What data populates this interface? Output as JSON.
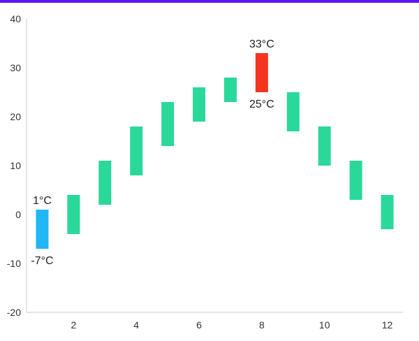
{
  "colors": {
    "top_bar": "#5b17f0",
    "default_bar": "#2ad89a",
    "min_bar": "#1fb8f5",
    "max_bar": "#f5341f"
  },
  "chart_data": {
    "type": "bar",
    "subtype": "range",
    "title": "",
    "xlabel": "",
    "ylabel": "",
    "x": [
      1,
      2,
      3,
      4,
      5,
      6,
      7,
      8,
      9,
      10,
      11,
      12
    ],
    "series": [
      {
        "low": [
          -7,
          -4,
          2,
          8,
          14,
          19,
          23,
          25,
          17,
          10,
          3,
          -3
        ],
        "high": [
          1,
          4,
          11,
          18,
          23,
          26,
          28,
          33,
          25,
          18,
          11,
          4
        ]
      }
    ],
    "ylim": [
      -20,
      40
    ],
    "xlim": [
      0.5,
      12.5
    ],
    "y_ticks": [
      -20,
      -10,
      0,
      10,
      20,
      30,
      40
    ],
    "x_ticks": [
      2,
      4,
      6,
      8,
      10,
      12
    ],
    "grid": false,
    "legend": "none",
    "annotations": [
      {
        "x": 1,
        "high_label": "1°C",
        "low_label": "-7°C",
        "highlight": "min"
      },
      {
        "x": 8,
        "high_label": "33°C",
        "low_label": "25°C",
        "highlight": "max"
      }
    ]
  }
}
